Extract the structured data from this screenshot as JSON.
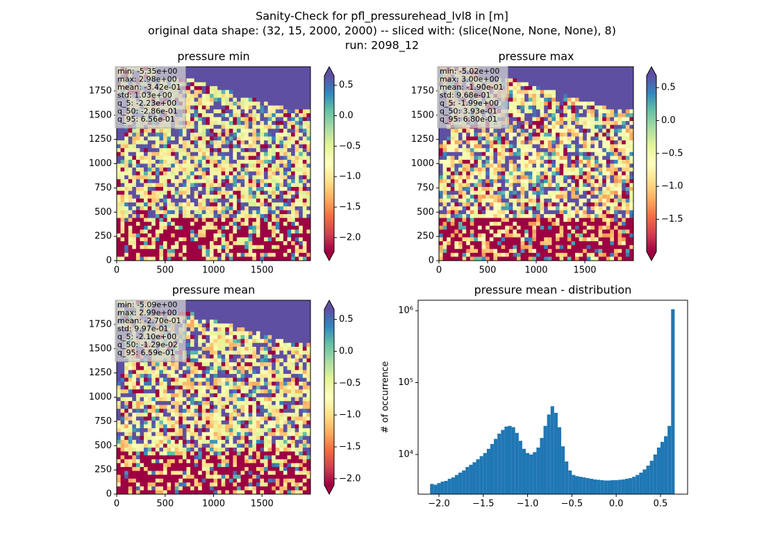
{
  "title": [
    "Sanity-Check for pfl_pressurehead_lvl8 in [m]",
    "original data shape: (32, 15, 2000, 2000) -- sliced with: (slice(None, None, None), 8)",
    "run: 2098_12"
  ],
  "chart_data": [
    {
      "type": "heatmap",
      "title": "pressure min",
      "xlim": [
        0,
        2000
      ],
      "ylim": [
        0,
        2000
      ],
      "xticks": [
        0,
        500,
        1000,
        1500
      ],
      "yticks": [
        0,
        250,
        500,
        750,
        1000,
        1250,
        1500,
        1750
      ],
      "stats": [
        "min: -5.35e+00",
        "max: 2.98e+00",
        "mean: -3.42e-01",
        "std: 1.03e+00",
        "q_5: -2.23e+00",
        "q_50: -2.86e-01",
        "q_95: 6.56e-01"
      ],
      "colorbar": {
        "lim": [
          -2.23,
          0.656
        ],
        "ticks": [
          {
            "value": 0.5,
            "label": "0.5"
          },
          {
            "value": 0,
            "label": "0.0"
          },
          {
            "value": -0.5,
            "label": "−0.5"
          },
          {
            "value": -1,
            "label": "−1.0"
          },
          {
            "value": -1.5,
            "label": "−1.5"
          },
          {
            "value": -2,
            "label": "−2.0"
          }
        ]
      }
    },
    {
      "type": "heatmap",
      "title": "pressure max",
      "xlim": [
        0,
        2000
      ],
      "ylim": [
        0,
        2000
      ],
      "xticks": [
        0,
        500,
        1000,
        1500
      ],
      "yticks": [
        0,
        250,
        500,
        750,
        1000,
        1250,
        1500,
        1750
      ],
      "stats": [
        "min: -5.02e+00",
        "max: 3.00e+00",
        "mean: -1.90e-01",
        "std: 9.68e-01",
        "q_5: -1.99e+00",
        "q_50: 3.93e-01",
        "q_95: 6.80e-01"
      ],
      "colorbar": {
        "lim": [
          -1.99,
          0.68
        ],
        "ticks": [
          {
            "value": 0.5,
            "label": "0.5"
          },
          {
            "value": 0,
            "label": "0.0"
          },
          {
            "value": -0.5,
            "label": "−0.5"
          },
          {
            "value": -1,
            "label": "−1.0"
          },
          {
            "value": -1.5,
            "label": "−1.5"
          }
        ]
      }
    },
    {
      "type": "heatmap",
      "title": "pressure mean",
      "xlim": [
        0,
        2000
      ],
      "ylim": [
        0,
        2000
      ],
      "xticks": [
        0,
        500,
        1000,
        1500
      ],
      "yticks": [
        0,
        250,
        500,
        750,
        1000,
        1250,
        1500,
        1750
      ],
      "stats": [
        "min: -5.09e+00",
        "max: 2.99e+00",
        "mean: -2.70e-01",
        "std: 9.97e-01",
        "q_5: -2.10e+00",
        "q_50: -1.29e-02",
        "q_95: 6.59e-01"
      ],
      "colorbar": {
        "lim": [
          -2.1,
          0.659
        ],
        "ticks": [
          {
            "value": 0.5,
            "label": "0.5"
          },
          {
            "value": 0,
            "label": "0.0"
          },
          {
            "value": -0.5,
            "label": "−0.5"
          },
          {
            "value": -1,
            "label": "−1.0"
          },
          {
            "value": -1.5,
            "label": "−1.5"
          },
          {
            "value": -2,
            "label": "−2.0"
          }
        ]
      }
    },
    {
      "type": "histogram",
      "title": "pressure mean - distribution",
      "ylabel": "# of occurrence",
      "color": "#1f77b4",
      "log_y": true,
      "xlim": [
        -2.235,
        0.806
      ],
      "xticks": [
        {
          "value": -2,
          "label": "−2.0"
        },
        {
          "value": -1.5,
          "label": "−1.5"
        },
        {
          "value": -1,
          "label": "−1.0"
        },
        {
          "value": -0.5,
          "label": "−0.5"
        },
        {
          "value": 0,
          "label": "0.0"
        },
        {
          "value": 0.5,
          "label": "0.5"
        }
      ],
      "ylim": [
        2810,
        1400000
      ],
      "yticks": [
        {
          "value": 10000,
          "label": "10⁴"
        },
        {
          "value": 100000,
          "label": "10⁵"
        },
        {
          "value": 1000000,
          "label": "10⁶"
        }
      ],
      "bins": [
        -2.1,
        -2.06,
        -2.02,
        -1.98,
        -1.94,
        -1.9,
        -1.86,
        -1.82,
        -1.78,
        -1.74,
        -1.7,
        -1.66,
        -1.62,
        -1.58,
        -1.54,
        -1.5,
        -1.46,
        -1.42,
        -1.38,
        -1.34,
        -1.3,
        -1.26,
        -1.22,
        -1.18,
        -1.14,
        -1.1,
        -1.06,
        -1.02,
        -0.98,
        -0.94,
        -0.9,
        -0.86,
        -0.82,
        -0.78,
        -0.74,
        -0.7,
        -0.66,
        -0.62,
        -0.58,
        -0.54,
        -0.5,
        -0.46,
        -0.42,
        -0.38,
        -0.34,
        -0.3,
        -0.26,
        -0.22,
        -0.18,
        -0.14,
        -0.1,
        -0.06,
        -0.02,
        0.02,
        0.06,
        0.1,
        0.14,
        0.18,
        0.22,
        0.26,
        0.3,
        0.34,
        0.38,
        0.42,
        0.46,
        0.5,
        0.54,
        0.58,
        0.62,
        0.66
      ],
      "counts": [
        3900,
        3800,
        4000,
        4200,
        4300,
        4600,
        4800,
        5200,
        5600,
        6000,
        6700,
        7200,
        7800,
        8600,
        9500,
        10500,
        12000,
        14000,
        16500,
        19500,
        22000,
        24500,
        25000,
        24000,
        20000,
        15500,
        12000,
        10500,
        10000,
        10800,
        12500,
        17000,
        25000,
        36000,
        47000,
        38000,
        24000,
        13000,
        8000,
        6000,
        5200,
        5000,
        4900,
        4800,
        4700,
        4600,
        4500,
        4450,
        4400,
        4350,
        4350,
        4400,
        4400,
        4450,
        4500,
        4600,
        4700,
        4900,
        5200,
        5600,
        6200,
        7000,
        8200,
        10000,
        12500,
        15000,
        18000,
        25000,
        1050000
      ]
    }
  ]
}
